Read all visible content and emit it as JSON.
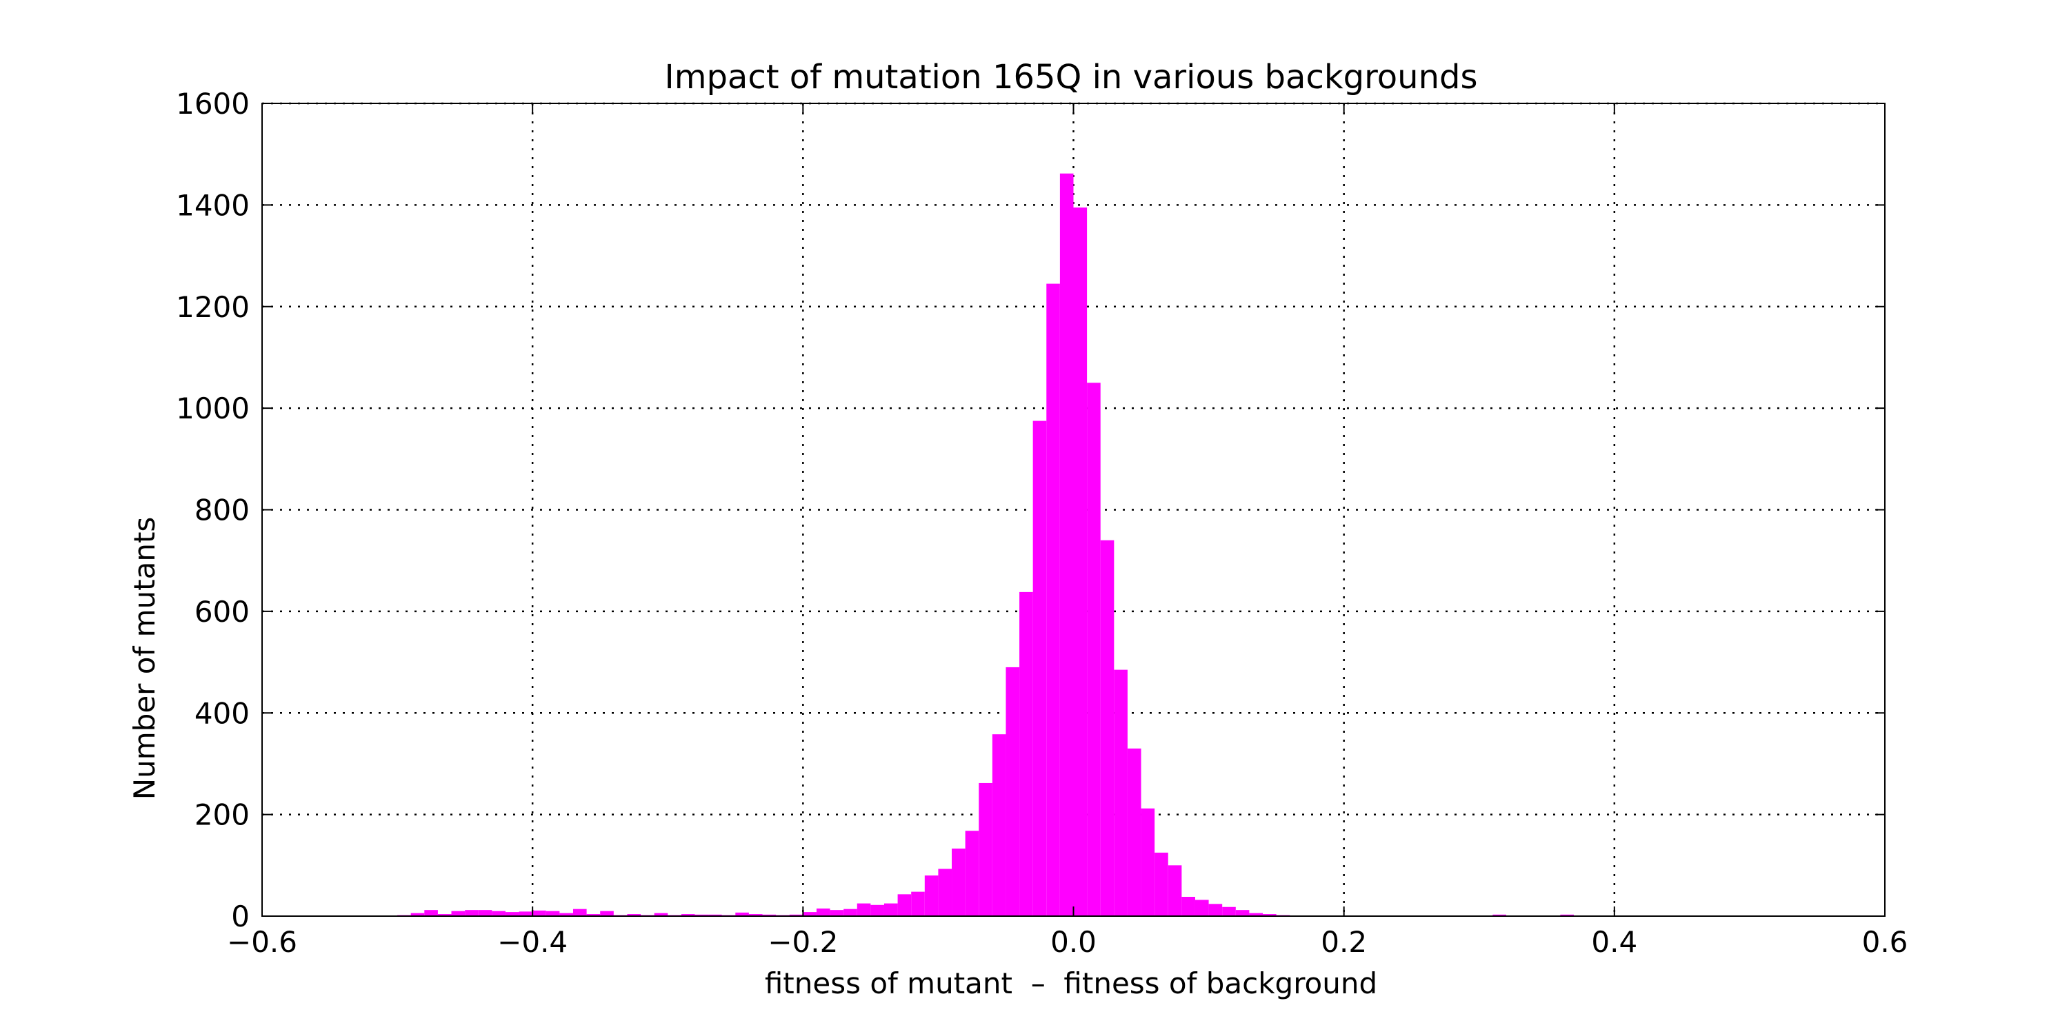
{
  "chart_data": {
    "type": "bar",
    "title": "Impact of mutation 165Q in various backgrounds",
    "xlabel": "fitness of mutant  –  fitness of background",
    "ylabel": "Number of mutants",
    "xlim": [
      -0.6,
      0.6
    ],
    "ylim": [
      0,
      1600
    ],
    "xticks": [
      -0.6,
      -0.4,
      -0.2,
      0.0,
      0.2,
      0.4,
      0.6
    ],
    "xtick_labels": [
      "−0.6",
      "−0.4",
      "−0.2",
      "0.0",
      "0.2",
      "0.4",
      "0.6"
    ],
    "yticks": [
      0,
      200,
      400,
      600,
      800,
      1000,
      1200,
      1400,
      1600
    ],
    "ytick_labels": [
      "0",
      "200",
      "400",
      "600",
      "800",
      "1000",
      "1200",
      "1400",
      "1600"
    ],
    "grid": true,
    "bar_color": "#ff00ff",
    "bin_width": 0.01,
    "bin_starts": [
      -0.5,
      -0.49,
      -0.48,
      -0.47,
      -0.46,
      -0.45,
      -0.44,
      -0.43,
      -0.42,
      -0.41,
      -0.4,
      -0.39,
      -0.38,
      -0.37,
      -0.36,
      -0.35,
      -0.34,
      -0.33,
      -0.32,
      -0.31,
      -0.3,
      -0.29,
      -0.28,
      -0.27,
      -0.26,
      -0.25,
      -0.24,
      -0.23,
      -0.22,
      -0.21,
      -0.2,
      -0.19,
      -0.18,
      -0.17,
      -0.16,
      -0.15,
      -0.14,
      -0.13,
      -0.12,
      -0.11,
      -0.1,
      -0.09,
      -0.08,
      -0.07,
      -0.06,
      -0.05,
      -0.04,
      -0.03,
      -0.02,
      -0.01,
      0.0,
      0.01,
      0.02,
      0.03,
      0.04,
      0.05,
      0.06,
      0.07,
      0.08,
      0.09,
      0.1,
      0.11,
      0.12,
      0.13,
      0.14,
      0.15,
      0.31,
      0.36
    ],
    "values": [
      2,
      6,
      12,
      4,
      10,
      12,
      12,
      10,
      8,
      9,
      11,
      10,
      6,
      14,
      4,
      10,
      2,
      4,
      2,
      6,
      2,
      4,
      3,
      3,
      2,
      7,
      4,
      3,
      2,
      3,
      8,
      15,
      12,
      14,
      25,
      22,
      25,
      43,
      48,
      80,
      93,
      133,
      168,
      262,
      358,
      490,
      638,
      975,
      1245,
      1462,
      1395,
      1050,
      740,
      485,
      330,
      212,
      125,
      100,
      38,
      32,
      24,
      18,
      12,
      6,
      4,
      2,
      3,
      3
    ]
  }
}
